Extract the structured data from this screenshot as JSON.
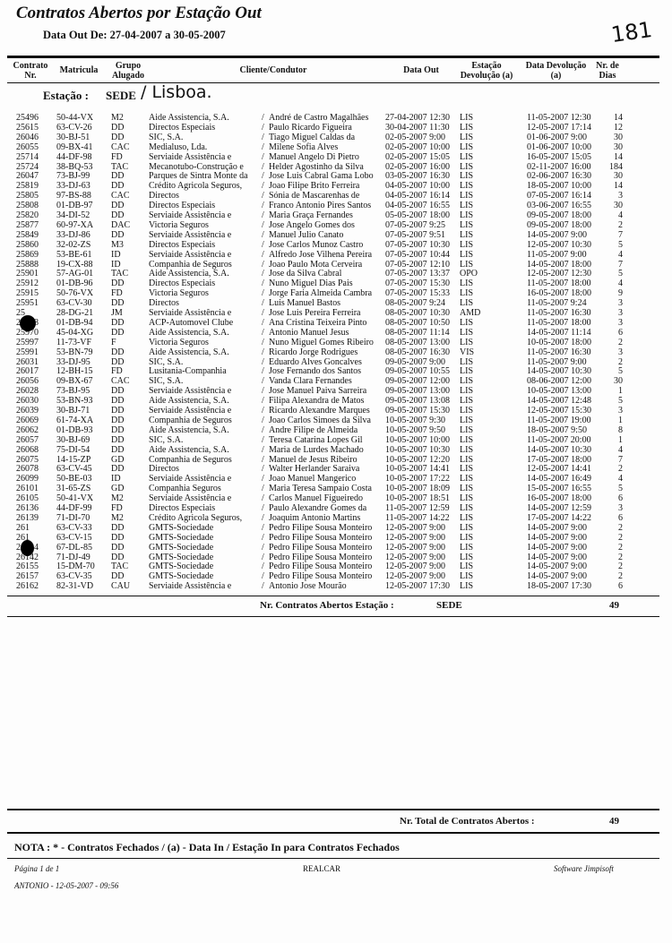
{
  "header": {
    "title": "Contratos Abertos por Estação Out",
    "subtitle": "Data Out De: 27-04-2007  a  30-05-2007",
    "handwritten_number": "181"
  },
  "columns": [
    "Contrato Nr.",
    "Matricula",
    "Grupo Alugado",
    "Cliente/Condutor",
    "Data Out",
    "Estação Devolução (a)",
    "Data Devolução (a)",
    "Nr. de Dias"
  ],
  "station": {
    "label": "Estação :",
    "value": "SEDE",
    "handwritten": "/ Lisboa."
  },
  "rows": [
    [
      "25496",
      "50-44-VX",
      "M2",
      "Aide Assistencia, S.A.",
      "André de Castro Magalhães",
      "27-04-2007  12:30",
      "LIS",
      "11-05-2007  12:30",
      "14"
    ],
    [
      "25615",
      "63-CV-26",
      "DD",
      "Directos Especiais",
      "Paulo Ricardo Figueira",
      "30-04-2007  11:30",
      "LIS",
      "12-05-2007  17:14",
      "12"
    ],
    [
      "26046",
      "30-BJ-51",
      "DD",
      "SIC, S.A.",
      "Tiago Miguel Caldas da",
      "02-05-2007   9:00",
      "LIS",
      "01-06-2007   9:00",
      "30"
    ],
    [
      "26055",
      "09-BX-41",
      "CAC",
      "Medialuso, Lda.",
      "Milene Sofia Alves",
      "02-05-2007  10:00",
      "LIS",
      "01-06-2007  10:00",
      "30"
    ],
    [
      "25714",
      "44-DF-98",
      "FD",
      "Serviaide Assistência e",
      "Manuel Angelo Di Pietro",
      "02-05-2007  15:05",
      "LIS",
      "16-05-2007  15:05",
      "14"
    ],
    [
      "25724",
      "38-BQ-53",
      "TAC",
      "Mecanotubo-Construção e",
      "Helder Agostinho da Silva",
      "02-05-2007  16:00",
      "LIS",
      "02-11-2007  16:00",
      "184"
    ],
    [
      "26047",
      "73-BJ-99",
      "DD",
      "Parques de Sintra Monte da",
      "Jose Luis Cabral Gama Lobo",
      "03-05-2007  16:30",
      "LIS",
      "02-06-2007  16:30",
      "30"
    ],
    [
      "25819",
      "33-DJ-63",
      "DD",
      "Crédito Agricola Seguros,",
      "Joao Filipe Brito Ferreira",
      "04-05-2007  10:00",
      "LIS",
      "18-05-2007  10:00",
      "14"
    ],
    [
      "25805",
      "97-BS-88",
      "CAC",
      "Directos",
      "Sónia de Mascarenhas de",
      "04-05-2007  16:14",
      "LIS",
      "07-05-2007  16:14",
      "3"
    ],
    [
      "25808",
      "01-DB-97",
      "DD",
      "Directos Especiais",
      "Franco Antonio Pires Santos",
      "04-05-2007  16:55",
      "LIS",
      "03-06-2007  16:55",
      "30"
    ],
    [
      "25820",
      "34-DI-52",
      "DD",
      "Serviaide Assistência e",
      "Maria Graça  Fernandes",
      "05-05-2007  18:00",
      "LIS",
      "09-05-2007  18:00",
      "4"
    ],
    [
      "25877",
      "60-97-XA",
      "DAC",
      "Victoria Seguros",
      "Jose Angelo Gomes dos",
      "07-05-2007   9:25",
      "LIS",
      "09-05-2007  18:00",
      "2"
    ],
    [
      "25849",
      "33-DJ-86",
      "DD",
      "Serviaide Assistência e",
      "Manuel Julio Canato",
      "07-05-2007   9:51",
      "LIS",
      "14-05-2007   9:00",
      "7"
    ],
    [
      "25860",
      "32-02-ZS",
      "M3",
      "Directos Especiais",
      "Jose Carlos Munoz Castro",
      "07-05-2007  10:30",
      "LIS",
      "12-05-2007  10:30",
      "5"
    ],
    [
      "25869",
      "53-BE-61",
      "ID",
      "Serviaide Assistência e",
      "Alfredo Jose Vilhena Pereira",
      "07-05-2007  10:44",
      "LIS",
      "11-05-2007   9:00",
      "4"
    ],
    [
      "25888",
      "19-CX-88",
      "ID",
      "Companhia de Seguros",
      "Joao Paulo Mota Cerveira",
      "07-05-2007  12:10",
      "LIS",
      "14-05-2007  18:00",
      "7"
    ],
    [
      "25901",
      "57-AG-01",
      "TAC",
      "Aide Assistencia, S.A.",
      "Jose da Silva Cabral",
      "07-05-2007  13:37",
      "OPO",
      "12-05-2007  12:30",
      "5"
    ],
    [
      "25912",
      "01-DB-96",
      "DD",
      "Directos Especiais",
      "Nuno Miguel Dias Pais",
      "07-05-2007  15:30",
      "LIS",
      "11-05-2007  18:00",
      "4"
    ],
    [
      "25915",
      "50-76-VX",
      "FD",
      "Victoria Seguros",
      "Jorge Faria Almeida Cambra",
      "07-05-2007  15:33",
      "LIS",
      "16-05-2007  18:00",
      "9"
    ],
    [
      "25951",
      "63-CV-30",
      "DD",
      "Directos",
      "Luis Manuel Bastos",
      "08-05-2007   9:24",
      "LIS",
      "11-05-2007   9:24",
      "3"
    ],
    [
      "25",
      "28-DG-21",
      "JM",
      "Serviaide Assistência e",
      "Jose Luis Pereira Ferreira",
      "08-05-2007  10:30",
      "AMD",
      "11-05-2007  16:30",
      "3"
    ],
    [
      "25968",
      "01-DB-94",
      "DD",
      "ACP-Automovel Clube",
      "Ana Cristina Teixeira Pinto",
      "08-05-2007  10:50",
      "LIS",
      "11-05-2007  18:00",
      "3"
    ],
    [
      "25970",
      "45-04-XG",
      "DD",
      "Aide Assistencia, S.A.",
      "Antonio Manuel Jesus",
      "08-05-2007  11:14",
      "LIS",
      "14-05-2007  11:14",
      "6"
    ],
    [
      "25997",
      "11-73-VF",
      "F",
      "Victoria Seguros",
      "Nuno Miguel Gomes Ribeiro",
      "08-05-2007  13:00",
      "LIS",
      "10-05-2007  18:00",
      "2"
    ],
    [
      "25991",
      "53-BN-79",
      "DD",
      "Aide Assistencia, S.A.",
      "Ricardo Jorge Rodrigues",
      "08-05-2007  16:30",
      "VIS",
      "11-05-2007  16:30",
      "3"
    ],
    [
      "26031",
      "33-DJ-95",
      "DD",
      "SIC, S.A.",
      "Eduardo Alves Goncalves",
      "09-05-2007   9:00",
      "LIS",
      "11-05-2007   9:00",
      "2"
    ],
    [
      "26017",
      "12-BH-15",
      "FD",
      "Lusitania-Companhia",
      "Jose Fernando dos Santos",
      "09-05-2007  10:55",
      "LIS",
      "14-05-2007  10:30",
      "5"
    ],
    [
      "26056",
      "09-BX-67",
      "CAC",
      "SIC, S.A.",
      "Vanda Clara Fernandes",
      "09-05-2007  12:00",
      "LIS",
      "08-06-2007  12:00",
      "30"
    ],
    [
      "26028",
      "73-BJ-95",
      "DD",
      "Serviaide Assistência e",
      "Jose Manuel Paiva Sarreira",
      "09-05-2007  13:00",
      "LIS",
      "10-05-2007  13:00",
      "1"
    ],
    [
      "26030",
      "53-BN-93",
      "DD",
      "Aide Assistencia, S.A.",
      "Filipa Alexandra de Matos",
      "09-05-2007  13:08",
      "LIS",
      "14-05-2007  12:48",
      "5"
    ],
    [
      "26039",
      "30-BJ-71",
      "DD",
      "Serviaide Assistência e",
      "Ricardo Alexandre Marques",
      "09-05-2007  15:30",
      "LIS",
      "12-05-2007  15:30",
      "3"
    ],
    [
      "26069",
      "61-74-XA",
      "DD",
      "Companhia de Seguros",
      "Joao Carlos Simoes da Silva",
      "10-05-2007   9:30",
      "LIS",
      "11-05-2007  19:00",
      "1"
    ],
    [
      "26062",
      "01-DB-93",
      "DD",
      "Aide Assistencia, S.A.",
      "Andre Filipe de Almeida",
      "10-05-2007   9:50",
      "LIS",
      "18-05-2007   9:50",
      "8"
    ],
    [
      "26057",
      "30-BJ-69",
      "DD",
      "SIC, S.A.",
      "Teresa Catarina Lopes Gil",
      "10-05-2007  10:00",
      "LIS",
      "11-05-2007  20:00",
      "1"
    ],
    [
      "26068",
      "75-DI-54",
      "DD",
      "Aide Assistencia, S.A.",
      "Maria de Lurdes Machado",
      "10-05-2007  10:30",
      "LIS",
      "14-05-2007  10:30",
      "4"
    ],
    [
      "26075",
      "14-15-ZP",
      "GD",
      "Companhia de Seguros",
      "Manuel de Jesus Ribeiro",
      "10-05-2007  12:20",
      "LIS",
      "17-05-2007  18:00",
      "7"
    ],
    [
      "26078",
      "63-CV-45",
      "DD",
      "Directos",
      "Walter Herlander Saraiva",
      "10-05-2007  14:41",
      "LIS",
      "12-05-2007  14:41",
      "2"
    ],
    [
      "26099",
      "50-BE-03",
      "ID",
      "Serviaide Assistência e",
      "Joao Manuel Mangerico",
      "10-05-2007  17:22",
      "LIS",
      "14-05-2007  16:49",
      "4"
    ],
    [
      "26101",
      "31-65-ZS",
      "GD",
      "Companhia Seguros",
      "Maria Teresa Sampaio Costa",
      "10-05-2007  18:09",
      "LIS",
      "15-05-2007  16:55",
      "5"
    ],
    [
      "26105",
      "50-41-VX",
      "M2",
      "Serviaide Assistência e",
      "Carlos Manuel Figueiredo",
      "10-05-2007  18:51",
      "LIS",
      "16-05-2007  18:00",
      "6"
    ],
    [
      "26136",
      "44-DF-99",
      "FD",
      "Directos Especiais",
      "Paulo Alexandre Gomes da",
      "11-05-2007  12:59",
      "LIS",
      "14-05-2007  12:59",
      "3"
    ],
    [
      "26139",
      "71-DI-70",
      "M2",
      "Crédito Agricola Seguros,",
      "Joaquim Antonio Martins",
      "11-05-2007  14:22",
      "LIS",
      "17-05-2007  14:22",
      "6"
    ],
    [
      "261",
      "63-CV-33",
      "DD",
      "GMTS-Sociedade",
      "Pedro Filipe Sousa Monteiro",
      "12-05-2007   9:00",
      "LIS",
      "14-05-2007   9:00",
      "2"
    ],
    [
      "261",
      "63-CV-15",
      "DD",
      "GMTS-Sociedade",
      "Pedro Filipe Sousa Monteiro",
      "12-05-2007   9:00",
      "LIS",
      "14-05-2007   9:00",
      "2"
    ],
    [
      "26134",
      "67-DL-85",
      "DD",
      "GMTS-Sociedade",
      "Pedro Filipe Sousa Monteiro",
      "12-05-2007   9:00",
      "LIS",
      "14-05-2007   9:00",
      "2"
    ],
    [
      "26142",
      "71-DJ-49",
      "DD",
      "GMTS-Sociedade",
      "Pedro Filipe Sousa Monteiro",
      "12-05-2007   9:00",
      "LIS",
      "14-05-2007   9:00",
      "2"
    ],
    [
      "26155",
      "15-DM-70",
      "TAC",
      "GMTS-Sociedade",
      "Pedro Filipe Sousa Monteiro",
      "12-05-2007   9:00",
      "LIS",
      "14-05-2007   9:00",
      "2"
    ],
    [
      "26157",
      "63-CV-35",
      "DD",
      "GMTS-Sociedade",
      "Pedro Filipe Sousa Monteiro",
      "12-05-2007   9:00",
      "LIS",
      "14-05-2007   9:00",
      "2"
    ],
    [
      "26162",
      "82-31-VD",
      "CAU",
      "Serviaide Assistência e",
      "Antonio Jose Mourão",
      "12-05-2007  17:30",
      "LIS",
      "18-05-2007  17:30",
      "6"
    ]
  ],
  "station_total": {
    "label": "Nr. Contratos Abertos Estação :",
    "station": "SEDE",
    "count": "49"
  },
  "grand_total": {
    "label": "Nr. Total de Contratos Abertos :",
    "count": "49"
  },
  "note": "NOTA : * - Contratos Fechados / (a) - Data In / Estação In para Contratos Fechados",
  "footer": {
    "page": "Página 1 de 1",
    "company": "REALCAR",
    "software": "Software Jimpisoft",
    "user_stamp": "ANTONIO - 12-05-2007 - 09:56"
  }
}
